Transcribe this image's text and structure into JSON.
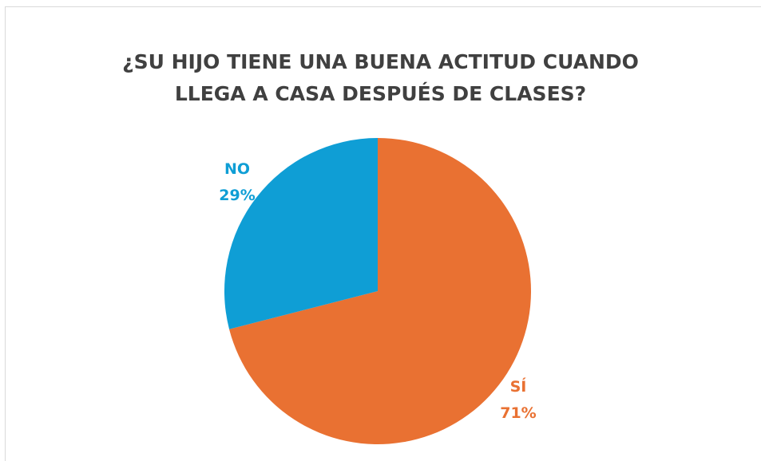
{
  "chart_data": {
    "type": "pie",
    "title": "¿SU HIJO TIENE UNA BUENA ACTITUD CUANDO LLEGA A CASA DESPUÉS DE CLASES?",
    "categories": [
      "SÍ",
      "NO"
    ],
    "values": [
      71,
      29
    ],
    "value_labels": [
      "71%",
      "29%"
    ],
    "colors": [
      "#E97132",
      "#0F9ED5"
    ]
  }
}
